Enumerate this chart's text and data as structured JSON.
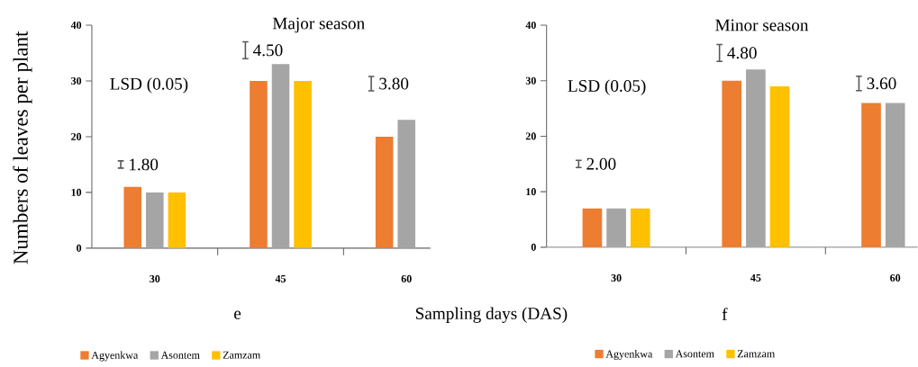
{
  "chart_data": [
    {
      "type": "bar",
      "title": "Major season",
      "subtitle": "e",
      "xlabel": "Sampling days (DAS)",
      "ylabel": "Numbers of leaves per plant",
      "categories": [
        "30",
        "45",
        "60"
      ],
      "series": [
        {
          "name": "Agyenkwa",
          "color": "#ed7d31",
          "values": [
            11,
            30,
            20
          ]
        },
        {
          "name": "Asontem",
          "color": "#a5a5a5",
          "values": [
            10,
            33,
            23
          ]
        },
        {
          "name": "Zamzam",
          "color": "#ffc000",
          "values": [
            10,
            30,
            null
          ]
        }
      ],
      "ylim": [
        0,
        40
      ],
      "yticks": [
        0,
        10,
        20,
        30,
        40
      ],
      "legend": "bottom",
      "annotations": [
        "LSD (0.05)",
        "1.80",
        "4.50",
        "3.80"
      ]
    },
    {
      "type": "bar",
      "title": "Minor season",
      "subtitle": "f",
      "categories": [
        "30",
        "45",
        "60"
      ],
      "series": [
        {
          "name": "Agyenkwa",
          "color": "#ed7d31",
          "values": [
            7,
            30,
            26
          ]
        },
        {
          "name": "Asontem",
          "color": "#a5a5a5",
          "values": [
            7,
            32,
            26
          ]
        },
        {
          "name": "Zamzam",
          "color": "#ffc000",
          "values": [
            7,
            29,
            null
          ]
        }
      ],
      "ylim": [
        0,
        40
      ],
      "yticks": [
        0,
        10,
        20,
        30,
        40
      ],
      "legend": "bottom",
      "annotations": [
        "LSD (0.05)",
        "2.00",
        "4.80",
        "3.60"
      ]
    }
  ]
}
